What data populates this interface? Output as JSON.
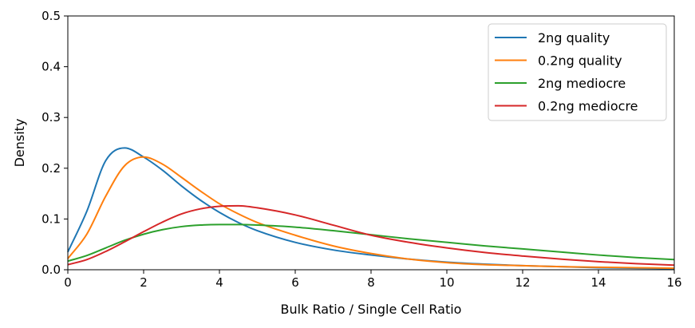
{
  "chart_data": {
    "type": "line",
    "xlabel": "Bulk Ratio / Single Cell Ratio",
    "ylabel": "Density",
    "xlim": [
      0,
      16
    ],
    "ylim": [
      0,
      0.5
    ],
    "xticks": [
      "0",
      "2",
      "4",
      "6",
      "8",
      "10",
      "12",
      "14",
      "16"
    ],
    "yticks": [
      "0.0",
      "0.1",
      "0.2",
      "0.3",
      "0.4",
      "0.5"
    ],
    "grid": false,
    "legend_position": "top-right",
    "x": [
      0,
      0.5,
      1,
      1.5,
      2,
      2.5,
      3,
      3.5,
      4,
      4.5,
      5,
      6,
      7,
      8,
      9,
      10,
      11,
      12,
      13,
      14,
      15,
      16
    ],
    "series": [
      {
        "name": "2ng quality",
        "color": "#1f77b4",
        "values": [
          0.035,
          0.115,
          0.215,
          0.24,
          0.222,
          0.196,
          0.165,
          0.137,
          0.113,
          0.093,
          0.077,
          0.054,
          0.039,
          0.029,
          0.021,
          0.015,
          0.011,
          0.008,
          0.006,
          0.004,
          0.003,
          0.002
        ]
      },
      {
        "name": "0.2ng quality",
        "color": "#ff7f0e",
        "values": [
          0.022,
          0.07,
          0.145,
          0.205,
          0.222,
          0.208,
          0.182,
          0.155,
          0.13,
          0.11,
          0.093,
          0.068,
          0.047,
          0.032,
          0.021,
          0.014,
          0.01,
          0.008,
          0.006,
          0.005,
          0.004,
          0.003
        ]
      },
      {
        "name": "2ng mediocre",
        "color": "#2ca02c",
        "values": [
          0.017,
          0.028,
          0.043,
          0.058,
          0.07,
          0.079,
          0.085,
          0.088,
          0.089,
          0.089,
          0.088,
          0.084,
          0.077,
          0.069,
          0.061,
          0.054,
          0.047,
          0.041,
          0.035,
          0.029,
          0.024,
          0.02
        ]
      },
      {
        "name": "0.2ng mediocre",
        "color": "#d62728",
        "values": [
          0.01,
          0.02,
          0.036,
          0.055,
          0.075,
          0.094,
          0.11,
          0.12,
          0.125,
          0.126,
          0.122,
          0.108,
          0.088,
          0.068,
          0.054,
          0.043,
          0.034,
          0.027,
          0.021,
          0.016,
          0.012,
          0.009
        ]
      }
    ]
  }
}
